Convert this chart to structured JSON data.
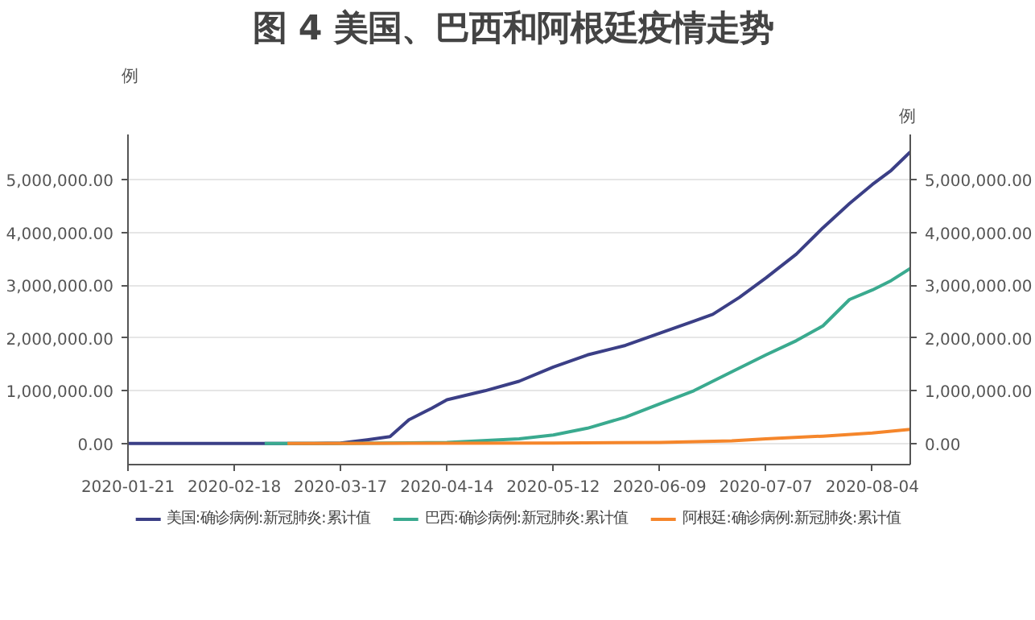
{
  "chart_data": {
    "type": "line",
    "title": "图 4  美国、巴西和阿根廷疫情走势",
    "ylabel": "例",
    "y2label": "例",
    "xlim": [
      "2020-01-21",
      "2020-08-14"
    ],
    "xticks": [
      "2020-01-21",
      "2020-02-18",
      "2020-03-17",
      "2020-04-14",
      "2020-05-12",
      "2020-06-09",
      "2020-07-07",
      "2020-08-04"
    ],
    "ylim": [
      -400000,
      5860000
    ],
    "yticks": [
      {
        "value": 0,
        "label": "0.00"
      },
      {
        "value": 1000000,
        "label": "1,000,000.00"
      },
      {
        "value": 2000000,
        "label": "2,000,000.00"
      },
      {
        "value": 3000000,
        "label": "3,000,000.00"
      },
      {
        "value": 4000000,
        "label": "4,000,000.00"
      },
      {
        "value": 5000000,
        "label": "5,000,000.00"
      }
    ],
    "y2lim": [
      -400000,
      5860000
    ],
    "y2ticks": [
      {
        "value": 0,
        "label": "0.00"
      },
      {
        "value": 1000000,
        "label": "1,000,000.00"
      },
      {
        "value": 2000000,
        "label": "2,000,000.00"
      },
      {
        "value": 3000000,
        "label": "3,000,000.00"
      },
      {
        "value": 4000000,
        "label": "4,000,000.00"
      },
      {
        "value": 5000000,
        "label": "5,000,000.00"
      }
    ],
    "grid": "y",
    "legend": "bottom",
    "marker": "none",
    "line_style": "solid",
    "series": [
      {
        "name": "美国:确诊病例:新冠肺炎:累计值",
        "color": "#3b3f86",
        "x": [
          "2020-01-21",
          "2020-03-10",
          "2020-03-17",
          "2020-03-24",
          "2020-03-30",
          "2020-04-04",
          "2020-04-10",
          "2020-04-14",
          "2020-04-24",
          "2020-05-03",
          "2020-05-12",
          "2020-05-21",
          "2020-05-31",
          "2020-06-09",
          "2020-06-18",
          "2020-06-23",
          "2020-06-30",
          "2020-07-07",
          "2020-07-15",
          "2020-07-22",
          "2020-07-29",
          "2020-08-04",
          "2020-08-09",
          "2020-08-14"
        ],
        "values": [
          0,
          0,
          10000,
          70000,
          130000,
          450000,
          670000,
          830000,
          1000000,
          1180000,
          1450000,
          1680000,
          1860000,
          2090000,
          2320000,
          2450000,
          2770000,
          3140000,
          3590000,
          4090000,
          4550000,
          4910000,
          5180000,
          5530000
        ]
      },
      {
        "name": "巴西:确诊病例:新冠肺炎:累计值",
        "color": "#3aaa8f",
        "x": [
          "2020-02-26",
          "2020-03-17",
          "2020-04-14",
          "2020-05-03",
          "2020-05-12",
          "2020-05-21",
          "2020-05-31",
          "2020-06-09",
          "2020-06-18",
          "2020-06-28",
          "2020-07-07",
          "2020-07-15",
          "2020-07-22",
          "2020-07-29",
          "2020-08-04",
          "2020-08-09",
          "2020-08-14"
        ],
        "values": [
          0,
          0,
          20000,
          90000,
          160000,
          290000,
          500000,
          750000,
          1000000,
          1360000,
          1680000,
          1950000,
          2230000,
          2730000,
          2910000,
          3090000,
          3320000
        ]
      },
      {
        "name": "阿根廷:确诊病例:新冠肺炎:累计值",
        "color": "#f5862b",
        "x": [
          "2020-03-03",
          "2020-05-12",
          "2020-06-09",
          "2020-06-28",
          "2020-07-07",
          "2020-07-22",
          "2020-08-04",
          "2020-08-14"
        ],
        "values": [
          0,
          10000,
          20000,
          50000,
          90000,
          140000,
          200000,
          270000
        ]
      }
    ]
  }
}
